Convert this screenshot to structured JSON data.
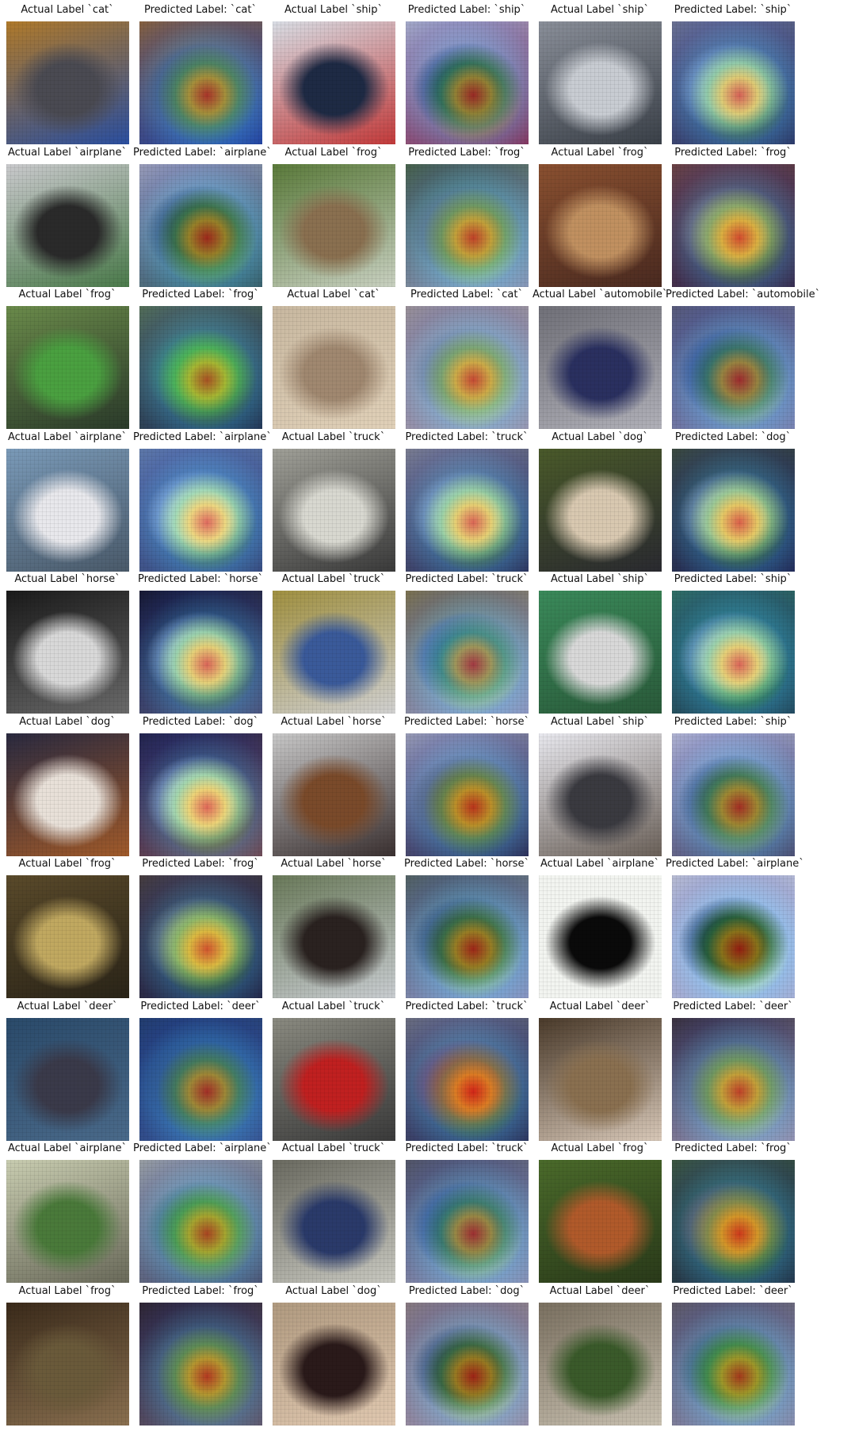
{
  "figure": {
    "rows": [
      [
        {
          "actual": "Actual Label `cat`",
          "predicted": "Predicted Label: `cat`",
          "palette": [
            "#b07a2a",
            "#4a4a52",
            "#2a4fa0"
          ]
        },
        {
          "actual": "Actual Label `ship`",
          "predicted": "Predicted Label: `ship`",
          "palette": [
            "#d8dde4",
            "#1e2a44",
            "#c23a3a"
          ]
        },
        {
          "actual": "Actual Label `ship`",
          "predicted": "Predicted Label: `ship`",
          "palette": [
            "#8a8f99",
            "#c8ccd2",
            "#3a4048"
          ]
        }
      ],
      [
        {
          "actual": "Actual Label `airplane`",
          "predicted": "Predicted Label: `airplane`",
          "palette": [
            "#c9c9cc",
            "#2a2a2a",
            "#4a7a4a"
          ]
        },
        {
          "actual": "Actual Label `frog`",
          "predicted": "Predicted Label: `frog`",
          "palette": [
            "#5a7a3a",
            "#8a7050",
            "#c8d0c0"
          ]
        },
        {
          "actual": "Actual Label `frog`",
          "predicted": "Predicted Label: `frog`",
          "palette": [
            "#8a5030",
            "#c09060",
            "#4a2a20"
          ]
        }
      ],
      [
        {
          "actual": "Actual Label `frog`",
          "predicted": "Predicted Label: `frog`",
          "palette": [
            "#6a8a4a",
            "#4aa040",
            "#2a3a2a"
          ]
        },
        {
          "actual": "Actual Label `cat`",
          "predicted": "Predicted Label: `cat`",
          "palette": [
            "#c8b8a0",
            "#a08870",
            "#e0d0b8"
          ]
        },
        {
          "actual": "Actual Label `automobile`",
          "predicted": "Predicted Label: `automobile`",
          "palette": [
            "#707078",
            "#2a3060",
            "#b0b0b8"
          ]
        }
      ],
      [
        {
          "actual": "Actual Label `airplane`",
          "predicted": "Predicted Label: `airplane`",
          "palette": [
            "#7a9ab8",
            "#e8e8ec",
            "#4a5a6a"
          ]
        },
        {
          "actual": "Actual Label `truck`",
          "predicted": "Predicted Label: `truck`",
          "palette": [
            "#a0a098",
            "#d8d8d0",
            "#3a3a3a"
          ]
        },
        {
          "actual": "Actual Label `dog`",
          "predicted": "Predicted Label: `dog`",
          "palette": [
            "#4a5a2a",
            "#d8c8b0",
            "#2a2a30"
          ]
        }
      ],
      [
        {
          "actual": "Actual Label `horse`",
          "predicted": "Predicted Label: `horse`",
          "palette": [
            "#1a1a1a",
            "#d8d8d8",
            "#6a6a6a"
          ]
        },
        {
          "actual": "Actual Label `truck`",
          "predicted": "Predicted Label: `truck`",
          "palette": [
            "#a09040",
            "#3a5a9a",
            "#d0d0d0"
          ]
        },
        {
          "actual": "Actual Label `ship`",
          "predicted": "Predicted Label: `ship`",
          "palette": [
            "#3a8a5a",
            "#d8d8d8",
            "#2a5a3a"
          ]
        }
      ],
      [
        {
          "actual": "Actual Label `dog`",
          "predicted": "Predicted Label: `dog`",
          "palette": [
            "#2a2a40",
            "#e8e0d8",
            "#a05a2a"
          ]
        },
        {
          "actual": "Actual Label `horse`",
          "predicted": "Predicted Label: `horse`",
          "palette": [
            "#c8c8c8",
            "#7a4a2a",
            "#3a3030"
          ]
        },
        {
          "actual": "Actual Label `ship`",
          "predicted": "Predicted Label: `ship`",
          "palette": [
            "#e8e8ee",
            "#3a3a40",
            "#6a6058"
          ]
        }
      ],
      [
        {
          "actual": "Actual Label `frog`",
          "predicted": "Predicted Label: `frog`",
          "palette": [
            "#5a4a2a",
            "#c0a860",
            "#2a2418"
          ]
        },
        {
          "actual": "Actual Label `horse`",
          "predicted": "Predicted Label: `horse`",
          "palette": [
            "#6a7a5a",
            "#2a2220",
            "#c8ccd0"
          ]
        },
        {
          "actual": "Actual Label `airplane`",
          "predicted": "Predicted Label: `airplane`",
          "palette": [
            "#f2f4f0",
            "#0a0a0a",
            "#f2f4f0"
          ]
        }
      ],
      [
        {
          "actual": "Actual Label `deer`",
          "predicted": "Predicted Label: `deer`",
          "palette": [
            "#2a4a6a",
            "#3a3a4a",
            "#4a6a8a"
          ]
        },
        {
          "actual": "Actual Label `truck`",
          "predicted": "Predicted Label: `truck`",
          "palette": [
            "#8a8a80",
            "#c02020",
            "#3a3a3a"
          ]
        },
        {
          "actual": "Actual Label `deer`",
          "predicted": "Predicted Label: `deer`",
          "palette": [
            "#4a3a2a",
            "#8a7050",
            "#d8c8b8"
          ]
        }
      ],
      [
        {
          "actual": "Actual Label `airplane`",
          "predicted": "Predicted Label: `airplane`",
          "palette": [
            "#c8ccb0",
            "#4a7a3a",
            "#6a6a5a"
          ]
        },
        {
          "actual": "Actual Label `truck`",
          "predicted": "Predicted Label: `truck`",
          "palette": [
            "#6a6a60",
            "#2a3a6a",
            "#c8c8c0"
          ]
        },
        {
          "actual": "Actual Label `frog`",
          "predicted": "Predicted Label: `frog`",
          "palette": [
            "#4a6a2a",
            "#b05a2a",
            "#2a3a1a"
          ]
        }
      ],
      [
        {
          "actual": "Actual Label `frog`",
          "predicted": "Predicted Label: `frog`",
          "palette": [
            "#3a2a1a",
            "#6a5a3a",
            "#8a7050"
          ]
        },
        {
          "actual": "Actual Label `dog`",
          "predicted": "Predicted Label: `dog`",
          "palette": [
            "#b09a80",
            "#2a1a1a",
            "#e0c8b0"
          ]
        },
        {
          "actual": "Actual Label `deer`",
          "predicted": "Predicted Label: `deer`",
          "palette": [
            "#7a7060",
            "#3a5a2a",
            "#c8c0b0"
          ]
        }
      ]
    ]
  }
}
